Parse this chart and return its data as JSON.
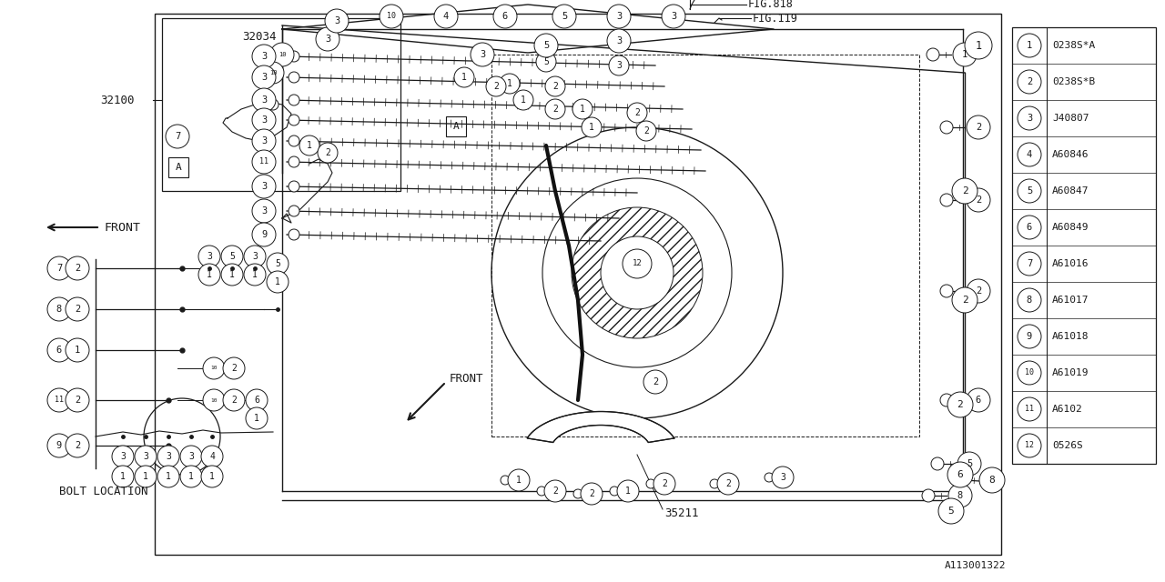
{
  "bg_color": "#ffffff",
  "line_color": "#1a1a1a",
  "part_numbers": [
    {
      "num": 1,
      "code": "0238S*A"
    },
    {
      "num": 2,
      "code": "0238S*B"
    },
    {
      "num": 3,
      "code": "J40807"
    },
    {
      "num": 4,
      "code": "A60846"
    },
    {
      "num": 5,
      "code": "A60847"
    },
    {
      "num": 6,
      "code": "A60849"
    },
    {
      "num": 7,
      "code": "A61016"
    },
    {
      "num": 8,
      "code": "A61017"
    },
    {
      "num": 9,
      "code": "A61018"
    },
    {
      "num": 10,
      "code": "A61019"
    },
    {
      "num": 11,
      "code": "A6102"
    },
    {
      "num": 12,
      "code": "0526S"
    }
  ],
  "labels": {
    "fig818": "FIG.818",
    "fig119": "FIG.119",
    "label_32034": "32034",
    "label_32100": "32100",
    "label_35211": "35211",
    "label_A": "A",
    "bolt_location": "BOLT LOCATION",
    "front": "FRONT",
    "diagram_id": "A113001322"
  }
}
